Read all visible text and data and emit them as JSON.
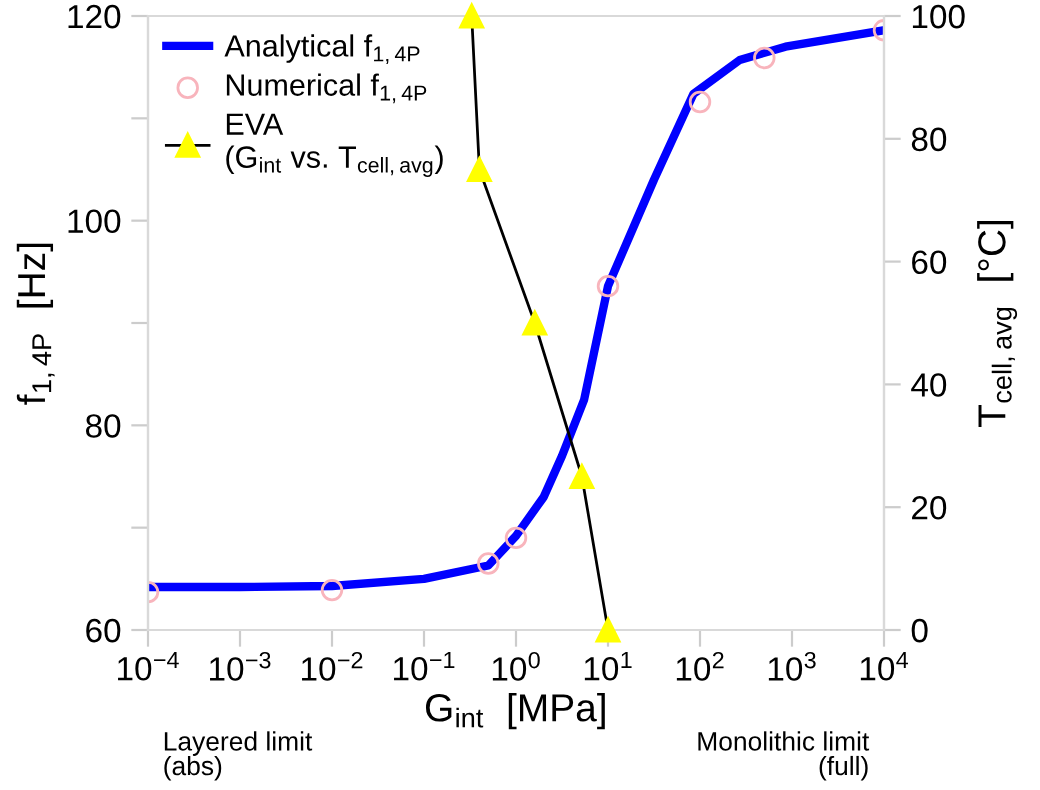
{
  "chart_data": {
    "type": "line",
    "log": "x",
    "xlabel": "G$_{int}$  [MPa]",
    "ylabel": "f$_{1,4P}$  [Hz]",
    "y2label": "T$_{cell,avg}$  [°C]",
    "xlim": [
      0.0001,
      10000
    ],
    "xticks": [
      {
        "value": 0.0001,
        "label": "10$^{−4}$"
      },
      {
        "value": 0.001,
        "label": "10$^{−3}$"
      },
      {
        "value": 0.01,
        "label": "10$^{−2}$"
      },
      {
        "value": 0.1,
        "label": "10$^{−1}$"
      },
      {
        "value": 1,
        "label": "10$^{0}$"
      },
      {
        "value": 10,
        "label": "10$^{1}$"
      },
      {
        "value": 100,
        "label": "10$^{2}$"
      },
      {
        "value": 1000,
        "label": "10$^{3}$"
      },
      {
        "value": 10000,
        "label": "10$^{4}$"
      }
    ],
    "ylim": [
      60,
      120
    ],
    "yticks": [
      60,
      {
        "value": 70,
        "label": null
      },
      80,
      {
        "value": 90,
        "label": null
      },
      100,
      {
        "value": 110,
        "label": null
      },
      120
    ],
    "y2lim": [
      0,
      100
    ],
    "y2ticks": [
      0,
      20,
      40,
      60,
      80,
      100
    ],
    "grid": false,
    "legend": "top left",
    "series": [
      {
        "name": "Analytical f$_{1,4P}$",
        "type": "line",
        "marker": "none",
        "color": "#0000ff",
        "x": [
          0.0001,
          0.001,
          0.01,
          0.1,
          0.5,
          1,
          2,
          3.16,
          5.5,
          10,
          31.6,
          85,
          270,
          850,
          10000
        ],
        "values": [
          64.2,
          64.2,
          64.3,
          65.0,
          66.3,
          69.2,
          73,
          77,
          82.5,
          93.6,
          104,
          112.4,
          115.7,
          117.0,
          118.6
        ]
      },
      {
        "name": "Numerical f$_{1,4P}$",
        "type": "scatter",
        "marker": "circle",
        "color": "#f8b4bc",
        "x": [
          0.0001,
          0.01,
          0.5,
          1,
          10,
          100,
          500,
          10000
        ],
        "values": [
          63.7,
          63.9,
          66.5,
          69,
          93.6,
          111.6,
          115.9,
          118.6
        ]
      },
      {
        "name": "EVA\n(G$_{int}$ vs. T$_{cell,avg}$)",
        "type": "line",
        "marker": "triangle",
        "axis": "y2",
        "color": "#ffff00",
        "x": [
          0.33,
          0.4,
          1.6,
          5.2,
          10
        ],
        "values": [
          100,
          75,
          50,
          25,
          0
        ]
      }
    ],
    "annotations": [
      "Layered limit\n(abs)",
      "Monolithic limit\n(full)"
    ]
  }
}
